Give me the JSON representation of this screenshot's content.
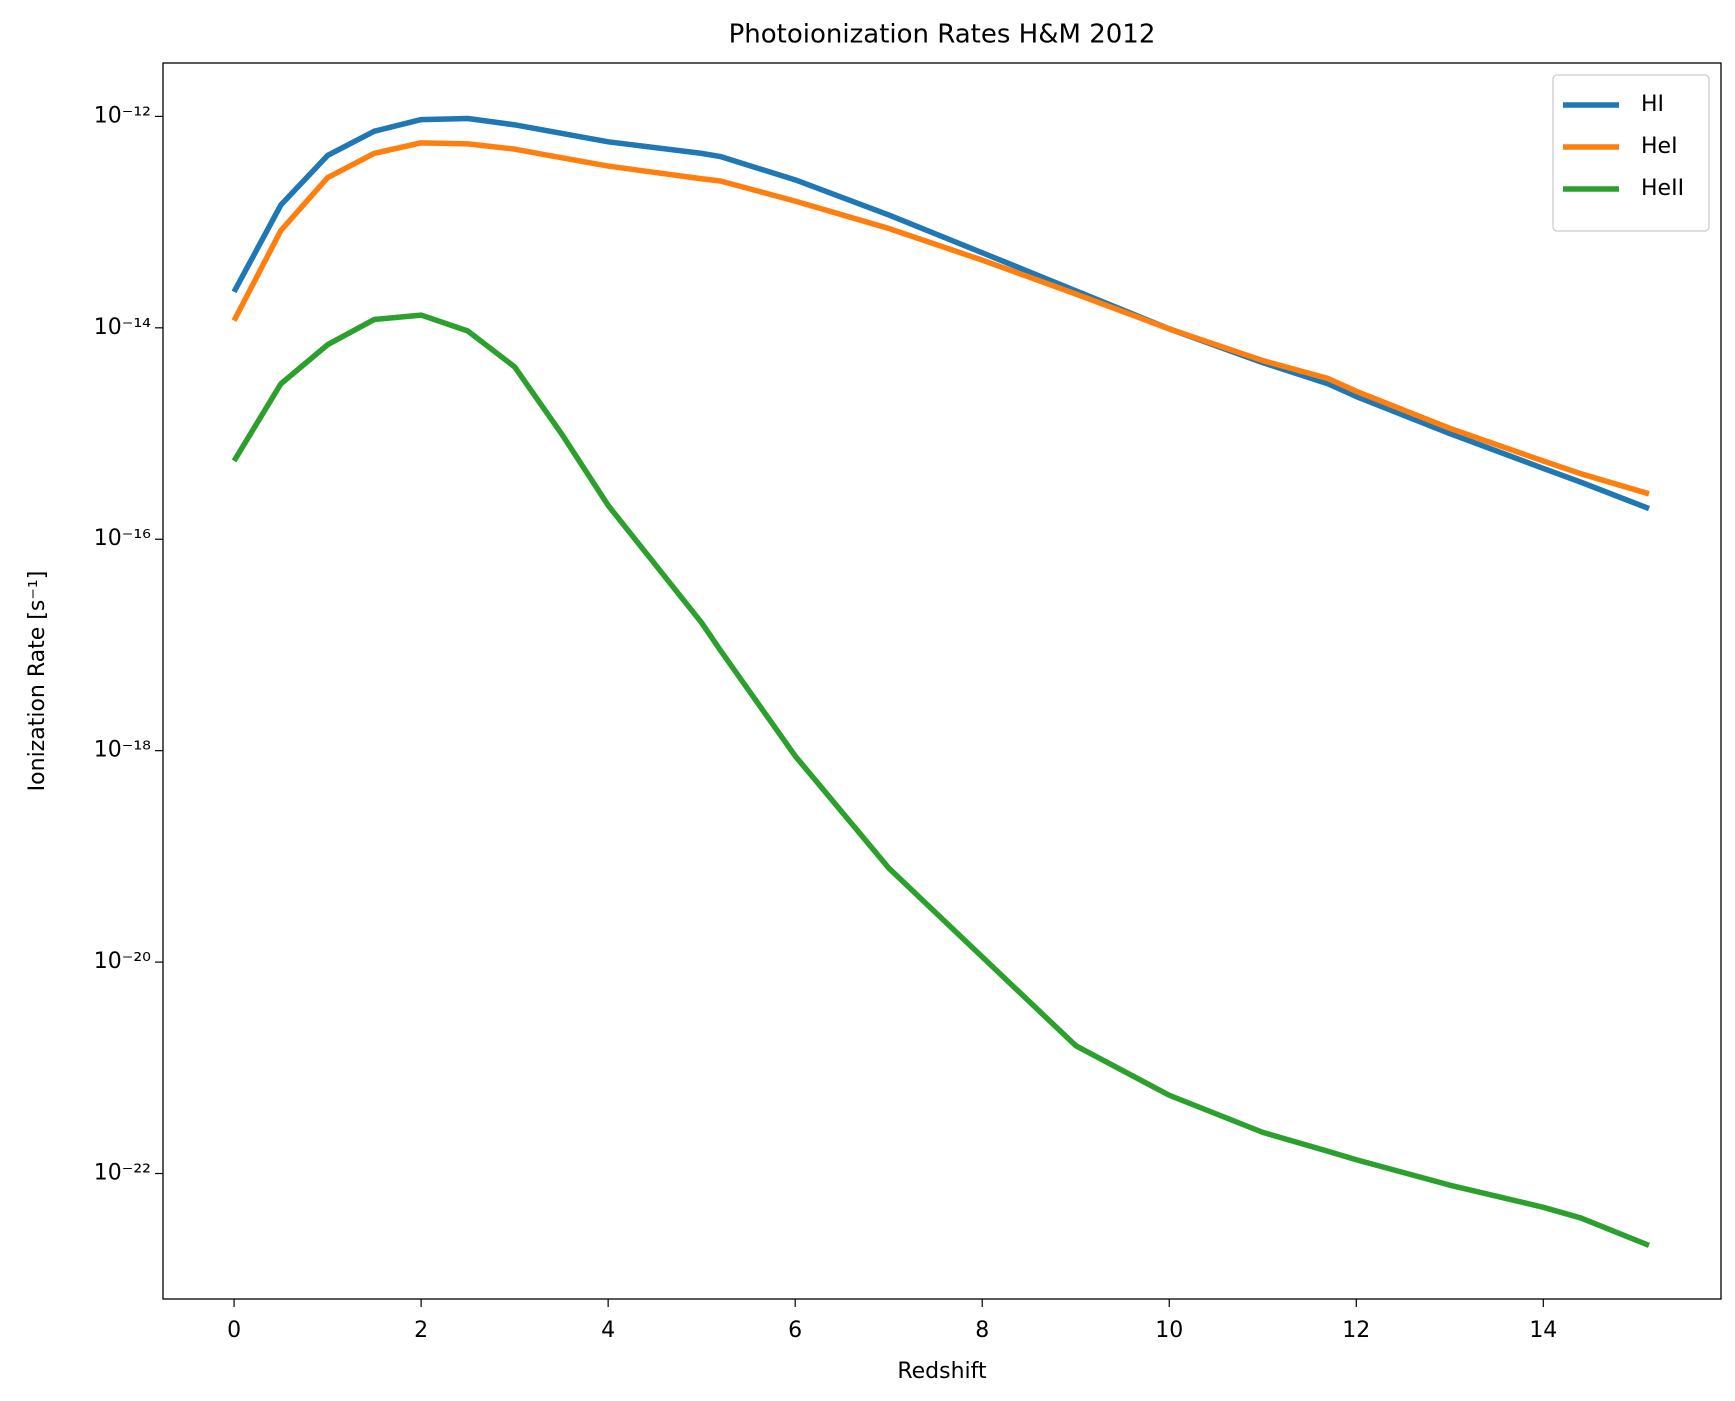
{
  "chart_data": {
    "type": "line",
    "title": "Photoionization Rates H&M 2012",
    "xlabel": "Redshift",
    "ylabel": "Ionization Rate  [s⁻¹]",
    "yscale": "log",
    "legend": "upper right",
    "xlim": [
      -0.76,
      15.9
    ],
    "xticks": [
      0,
      2,
      4,
      6,
      8,
      10,
      12,
      14
    ],
    "ylim": [
      6.5e-24,
      3.2e-12
    ],
    "yticks": [
      {
        "value": 1e-12,
        "label": "10⁻¹²"
      },
      {
        "value": 1e-14,
        "label": "10⁻¹⁴"
      },
      {
        "value": 1e-16,
        "label": "10⁻¹⁶"
      },
      {
        "value": 1e-18,
        "label": "10⁻¹⁸"
      },
      {
        "value": 1e-20,
        "label": "10⁻²⁰"
      },
      {
        "value": 1e-22,
        "label": "10⁻²²"
      }
    ],
    "x": [
      0,
      0.5,
      1,
      1.5,
      2,
      2.5,
      3,
      3.5,
      4,
      5,
      5.2,
      6,
      7,
      8,
      9,
      10,
      11,
      11.7,
      12,
      13,
      14,
      14.4,
      15.13
    ],
    "series": [
      {
        "name": "HI",
        "color": "#1f77b4",
        "values": [
          2.19e-14,
          1.45e-13,
          4.27e-13,
          7.24e-13,
          9.33e-13,
          9.55e-13,
          8.32e-13,
          6.92e-13,
          5.75e-13,
          4.47e-13,
          4.17e-13,
          2.51e-13,
          1.17e-13,
          5.13e-14,
          2.24e-14,
          9.77e-15,
          4.68e-15,
          2.95e-15,
          2.24e-15,
          1e-15,
          4.68e-16,
          3.47e-16,
          1.95e-16
        ]
      },
      {
        "name": "HeI",
        "color": "#ff7f0e",
        "values": [
          1.17e-14,
          8.32e-14,
          2.63e-13,
          4.47e-13,
          5.62e-13,
          5.5e-13,
          4.9e-13,
          4.07e-13,
          3.39e-13,
          2.57e-13,
          2.45e-13,
          1.58e-13,
          8.71e-14,
          4.37e-14,
          2.09e-14,
          9.77e-15,
          4.9e-15,
          3.31e-15,
          2.51e-15,
          1.12e-15,
          5.5e-16,
          4.17e-16,
          2.69e-16
        ]
      },
      {
        "name": "HeII",
        "color": "#2ca02c",
        "values": [
          5.5e-16,
          2.95e-15,
          6.92e-15,
          1.2e-14,
          1.32e-14,
          9.33e-15,
          4.27e-15,
          1e-15,
          2.09e-16,
          1.62e-17,
          8.91e-18,
          8.91e-19,
          7.76e-20,
          1.12e-20,
          1.62e-21,
          5.5e-22,
          2.45e-22,
          1.62e-22,
          1.35e-22,
          7.76e-23,
          4.79e-23,
          3.8e-23,
          2.09e-23
        ]
      }
    ]
  }
}
